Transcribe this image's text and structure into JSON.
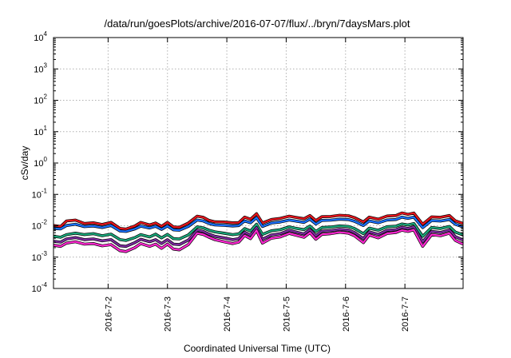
{
  "chart_data": {
    "type": "line",
    "title": "/data/run/goesPlots/archive/2016-07-07/flux/../bryn/7daysMars.plot",
    "xlabel": "Coordinated Universal Time (UTC)",
    "ylabel": "cSv/day",
    "yscale": "log",
    "ylim": [
      0.0001,
      10000
    ],
    "xlim": [
      1.08,
      7.98
    ],
    "x_ticks": [
      {
        "x": 2,
        "label": "2016-7-2"
      },
      {
        "x": 3,
        "label": "2016-7-3"
      },
      {
        "x": 4,
        "label": "2016-7-4"
      },
      {
        "x": 5,
        "label": "2016-7-5"
      },
      {
        "x": 6,
        "label": "2016-7-6"
      },
      {
        "x": 7,
        "label": "2016-7-7"
      }
    ],
    "y_ticks": [
      {
        "value": 0.0001,
        "base": "10",
        "exp": "-4"
      },
      {
        "value": 0.001,
        "base": "10",
        "exp": "-3"
      },
      {
        "value": 0.01,
        "base": "10",
        "exp": "-2"
      },
      {
        "value": 0.1,
        "base": "10",
        "exp": "-1"
      },
      {
        "value": 1,
        "base": "10",
        "exp": "0"
      },
      {
        "value": 10,
        "base": "10",
        "exp": "1"
      },
      {
        "value": 100,
        "base": "10",
        "exp": "2"
      },
      {
        "value": 1000,
        "base": "10",
        "exp": "3"
      },
      {
        "value": 10000,
        "base": "10",
        "exp": "4"
      }
    ],
    "grid": true,
    "x": [
      1.08,
      1.2,
      1.3,
      1.45,
      1.6,
      1.75,
      1.9,
      2.05,
      2.2,
      2.3,
      2.45,
      2.55,
      2.7,
      2.8,
      2.9,
      3.0,
      3.1,
      3.2,
      3.35,
      3.5,
      3.6,
      3.7,
      3.8,
      3.95,
      4.1,
      4.2,
      4.3,
      4.4,
      4.5,
      4.6,
      4.75,
      4.9,
      5.05,
      5.15,
      5.3,
      5.4,
      5.5,
      5.6,
      5.75,
      5.9,
      6.05,
      6.15,
      6.3,
      6.4,
      6.55,
      6.7,
      6.85,
      6.95,
      7.05,
      7.15,
      7.3,
      7.45,
      7.6,
      7.75,
      7.85,
      7.98
    ],
    "series": [
      {
        "color": "#e8141c",
        "values": [
          0.0102,
          0.0095,
          0.0142,
          0.0152,
          0.0118,
          0.0124,
          0.011,
          0.0128,
          0.0082,
          0.0078,
          0.0098,
          0.0128,
          0.0106,
          0.0122,
          0.0096,
          0.0128,
          0.0092,
          0.0089,
          0.0122,
          0.0202,
          0.0186,
          0.0148,
          0.0133,
          0.0132,
          0.0124,
          0.0126,
          0.0188,
          0.0162,
          0.0242,
          0.0122,
          0.0158,
          0.0172,
          0.0202,
          0.0186,
          0.0168,
          0.0212,
          0.0146,
          0.0194,
          0.0198,
          0.0216,
          0.0208,
          0.0182,
          0.0132,
          0.0188,
          0.0162,
          0.0204,
          0.0212,
          0.0256,
          0.0232,
          0.0254,
          0.0112,
          0.0192,
          0.0186,
          0.0212,
          0.0144,
          0.0118
        ]
      },
      {
        "color": "#1a72ff",
        "values": [
          0.0082,
          0.0079,
          0.0102,
          0.0112,
          0.0094,
          0.0098,
          0.0088,
          0.0102,
          0.0068,
          0.0066,
          0.0079,
          0.0097,
          0.0085,
          0.0096,
          0.0077,
          0.0098,
          0.0074,
          0.0072,
          0.0095,
          0.0152,
          0.0142,
          0.0118,
          0.0106,
          0.0103,
          0.0098,
          0.0101,
          0.0142,
          0.0124,
          0.0181,
          0.0095,
          0.0122,
          0.0132,
          0.0152,
          0.0142,
          0.0128,
          0.0162,
          0.0113,
          0.0148,
          0.0151,
          0.0162,
          0.0157,
          0.0139,
          0.0102,
          0.0142,
          0.0124,
          0.0153,
          0.0158,
          0.0188,
          0.0172,
          0.0188,
          0.0087,
          0.0146,
          0.0141,
          0.0158,
          0.0111,
          0.0092
        ]
      },
      {
        "color": "#1aa87a",
        "values": [
          0.0046,
          0.0043,
          0.0052,
          0.0058,
          0.0052,
          0.0056,
          0.0048,
          0.0054,
          0.0036,
          0.0034,
          0.0042,
          0.0052,
          0.0044,
          0.0054,
          0.0041,
          0.0053,
          0.0039,
          0.0038,
          0.0051,
          0.0092,
          0.0086,
          0.0072,
          0.0064,
          0.0058,
          0.0052,
          0.0055,
          0.0081,
          0.0068,
          0.0112,
          0.0053,
          0.0069,
          0.0075,
          0.0092,
          0.0084,
          0.0075,
          0.0098,
          0.0066,
          0.0088,
          0.0091,
          0.0099,
          0.0095,
          0.0082,
          0.0056,
          0.0084,
          0.0072,
          0.0093,
          0.0097,
          0.0114,
          0.0106,
          0.0118,
          0.0046,
          0.0088,
          0.0082,
          0.0095,
          0.0063,
          0.0051
        ]
      },
      {
        "color": "#7d2aa0",
        "values": [
          0.0032,
          0.003,
          0.0038,
          0.0042,
          0.0036,
          0.0038,
          0.0033,
          0.0036,
          0.0023,
          0.0022,
          0.0029,
          0.0037,
          0.0031,
          0.0036,
          0.0027,
          0.0036,
          0.0026,
          0.0025,
          0.0035,
          0.0072,
          0.0066,
          0.0054,
          0.0046,
          0.0041,
          0.0036,
          0.0039,
          0.0062,
          0.005,
          0.0088,
          0.0037,
          0.0051,
          0.0056,
          0.0071,
          0.0064,
          0.0055,
          0.0075,
          0.0048,
          0.0067,
          0.007,
          0.0077,
          0.0073,
          0.0061,
          0.0039,
          0.0064,
          0.0053,
          0.0071,
          0.0075,
          0.0089,
          0.0082,
          0.0092,
          0.0031,
          0.0066,
          0.0061,
          0.0073,
          0.0045,
          0.0035
        ]
      },
      {
        "color": "#ff28d2",
        "values": [
          0.0024,
          0.0022,
          0.0028,
          0.0031,
          0.0026,
          0.0027,
          0.0023,
          0.0025,
          0.0016,
          0.0015,
          0.002,
          0.0027,
          0.0022,
          0.0026,
          0.0019,
          0.0026,
          0.0018,
          0.0017,
          0.0025,
          0.0058,
          0.0053,
          0.0043,
          0.0036,
          0.0031,
          0.0027,
          0.003,
          0.0049,
          0.0039,
          0.0071,
          0.0028,
          0.004,
          0.0044,
          0.0057,
          0.0051,
          0.0043,
          0.006,
          0.0037,
          0.0053,
          0.0056,
          0.0062,
          0.0058,
          0.0048,
          0.0029,
          0.0051,
          0.0041,
          0.0057,
          0.0061,
          0.0072,
          0.0066,
          0.0074,
          0.0022,
          0.0052,
          0.0048,
          0.0058,
          0.0034,
          0.0026
        ]
      }
    ]
  }
}
